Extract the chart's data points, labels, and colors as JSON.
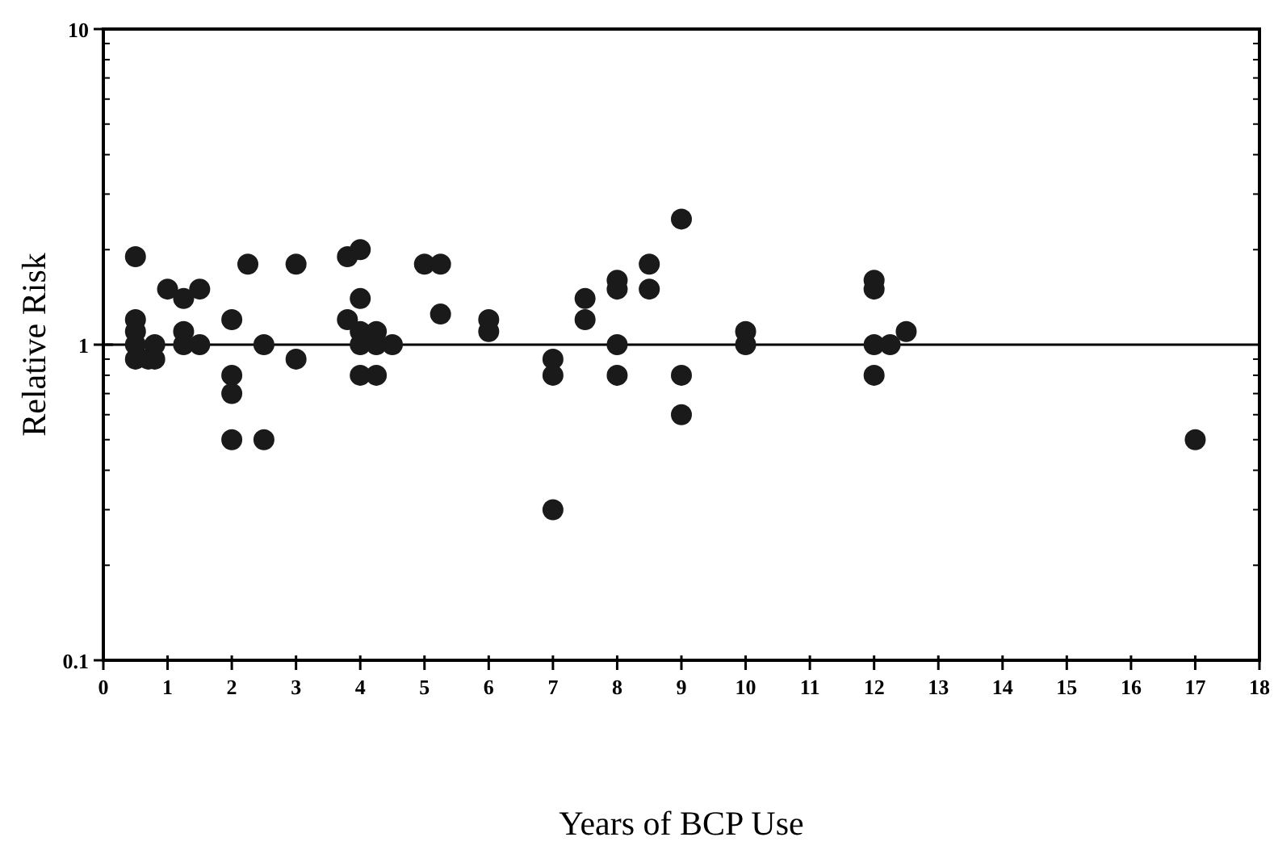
{
  "chart_data": {
    "type": "scatter",
    "xlabel": "Years of BCP Use",
    "ylabel": "Relative Risk",
    "log": "y",
    "xlim": [
      0,
      18
    ],
    "xticks": [
      0,
      1,
      2,
      3,
      4,
      5,
      6,
      7,
      8,
      9,
      10,
      11,
      12,
      13,
      14,
      15,
      16,
      17,
      18
    ],
    "ylim": [
      0.1,
      10
    ],
    "yticks": [
      0.1,
      1,
      10
    ],
    "grid": false,
    "marker": "circle",
    "ref_lines": [
      {
        "axis": "y",
        "value": 1,
        "color": "#000000"
      }
    ],
    "series": [
      {
        "color": "#1a1a1a",
        "x": [
          0.5,
          0.5,
          0.5,
          0.5,
          0.5,
          0.7,
          0.8,
          0.8,
          1,
          1.25,
          1.25,
          1.25,
          1.5,
          1.5,
          2,
          2,
          2,
          2,
          2.25,
          2.5,
          2.5,
          3,
          3,
          3.8,
          3.8,
          4,
          4,
          4,
          4,
          4,
          4.25,
          4.25,
          4.25,
          4.5,
          5,
          5.25,
          5.25,
          6,
          6,
          7,
          7,
          7,
          7.5,
          7.5,
          8,
          8,
          8,
          8,
          8.5,
          8.5,
          9,
          9,
          9,
          10,
          10,
          12,
          12,
          12,
          12,
          12.25,
          12.5,
          17
        ],
        "values": [
          1.9,
          1.2,
          1.1,
          1.0,
          0.9,
          0.9,
          1.0,
          0.9,
          1.5,
          1.4,
          1.1,
          1.0,
          1.5,
          1.0,
          1.2,
          0.8,
          0.7,
          0.5,
          1.8,
          1.0,
          0.5,
          1.8,
          0.9,
          1.9,
          1.2,
          2.0,
          1.4,
          1.1,
          1.0,
          0.8,
          1.1,
          1.0,
          0.8,
          1.0,
          1.8,
          1.8,
          1.25,
          1.2,
          1.1,
          0.9,
          0.8,
          0.3,
          1.4,
          1.2,
          1.6,
          1.5,
          1.0,
          0.8,
          1.8,
          1.5,
          2.5,
          0.8,
          0.6,
          1.1,
          1.0,
          1.6,
          1.5,
          1.0,
          0.8,
          1.0,
          1.1,
          0.5
        ]
      }
    ]
  }
}
